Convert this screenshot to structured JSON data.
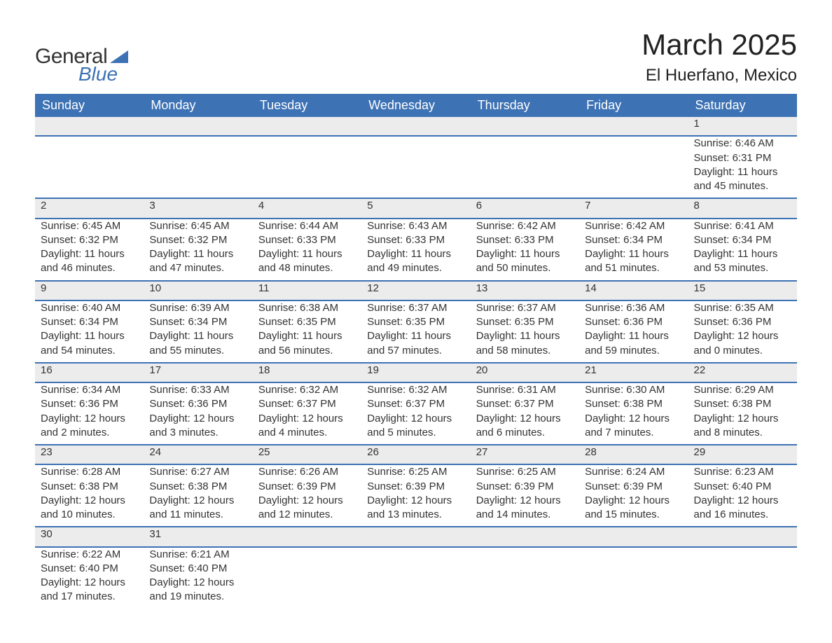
{
  "logo": {
    "word1": "General",
    "word2": "Blue",
    "text_color": "#333333",
    "accent_color": "#3d72b4"
  },
  "title": "March 2025",
  "location": "El Huerfano, Mexico",
  "colors": {
    "header_bg": "#3d72b4",
    "header_text": "#ffffff",
    "daynum_bg": "#ececec",
    "daynum_text": "#555555",
    "body_text": "#333333",
    "row_divider": "#3d72b4",
    "page_bg": "#ffffff"
  },
  "typography": {
    "title_fontsize": 42,
    "location_fontsize": 24,
    "header_fontsize": 18,
    "daynum_fontsize": 17,
    "cell_fontsize": 15
  },
  "columns": [
    "Sunday",
    "Monday",
    "Tuesday",
    "Wednesday",
    "Thursday",
    "Friday",
    "Saturday"
  ],
  "weeks": [
    [
      null,
      null,
      null,
      null,
      null,
      null,
      {
        "day": "1",
        "sunrise": "Sunrise: 6:46 AM",
        "sunset": "Sunset: 6:31 PM",
        "daylight1": "Daylight: 11 hours",
        "daylight2": "and 45 minutes."
      }
    ],
    [
      {
        "day": "2",
        "sunrise": "Sunrise: 6:45 AM",
        "sunset": "Sunset: 6:32 PM",
        "daylight1": "Daylight: 11 hours",
        "daylight2": "and 46 minutes."
      },
      {
        "day": "3",
        "sunrise": "Sunrise: 6:45 AM",
        "sunset": "Sunset: 6:32 PM",
        "daylight1": "Daylight: 11 hours",
        "daylight2": "and 47 minutes."
      },
      {
        "day": "4",
        "sunrise": "Sunrise: 6:44 AM",
        "sunset": "Sunset: 6:33 PM",
        "daylight1": "Daylight: 11 hours",
        "daylight2": "and 48 minutes."
      },
      {
        "day": "5",
        "sunrise": "Sunrise: 6:43 AM",
        "sunset": "Sunset: 6:33 PM",
        "daylight1": "Daylight: 11 hours",
        "daylight2": "and 49 minutes."
      },
      {
        "day": "6",
        "sunrise": "Sunrise: 6:42 AM",
        "sunset": "Sunset: 6:33 PM",
        "daylight1": "Daylight: 11 hours",
        "daylight2": "and 50 minutes."
      },
      {
        "day": "7",
        "sunrise": "Sunrise: 6:42 AM",
        "sunset": "Sunset: 6:34 PM",
        "daylight1": "Daylight: 11 hours",
        "daylight2": "and 51 minutes."
      },
      {
        "day": "8",
        "sunrise": "Sunrise: 6:41 AM",
        "sunset": "Sunset: 6:34 PM",
        "daylight1": "Daylight: 11 hours",
        "daylight2": "and 53 minutes."
      }
    ],
    [
      {
        "day": "9",
        "sunrise": "Sunrise: 6:40 AM",
        "sunset": "Sunset: 6:34 PM",
        "daylight1": "Daylight: 11 hours",
        "daylight2": "and 54 minutes."
      },
      {
        "day": "10",
        "sunrise": "Sunrise: 6:39 AM",
        "sunset": "Sunset: 6:34 PM",
        "daylight1": "Daylight: 11 hours",
        "daylight2": "and 55 minutes."
      },
      {
        "day": "11",
        "sunrise": "Sunrise: 6:38 AM",
        "sunset": "Sunset: 6:35 PM",
        "daylight1": "Daylight: 11 hours",
        "daylight2": "and 56 minutes."
      },
      {
        "day": "12",
        "sunrise": "Sunrise: 6:37 AM",
        "sunset": "Sunset: 6:35 PM",
        "daylight1": "Daylight: 11 hours",
        "daylight2": "and 57 minutes."
      },
      {
        "day": "13",
        "sunrise": "Sunrise: 6:37 AM",
        "sunset": "Sunset: 6:35 PM",
        "daylight1": "Daylight: 11 hours",
        "daylight2": "and 58 minutes."
      },
      {
        "day": "14",
        "sunrise": "Sunrise: 6:36 AM",
        "sunset": "Sunset: 6:36 PM",
        "daylight1": "Daylight: 11 hours",
        "daylight2": "and 59 minutes."
      },
      {
        "day": "15",
        "sunrise": "Sunrise: 6:35 AM",
        "sunset": "Sunset: 6:36 PM",
        "daylight1": "Daylight: 12 hours",
        "daylight2": "and 0 minutes."
      }
    ],
    [
      {
        "day": "16",
        "sunrise": "Sunrise: 6:34 AM",
        "sunset": "Sunset: 6:36 PM",
        "daylight1": "Daylight: 12 hours",
        "daylight2": "and 2 minutes."
      },
      {
        "day": "17",
        "sunrise": "Sunrise: 6:33 AM",
        "sunset": "Sunset: 6:36 PM",
        "daylight1": "Daylight: 12 hours",
        "daylight2": "and 3 minutes."
      },
      {
        "day": "18",
        "sunrise": "Sunrise: 6:32 AM",
        "sunset": "Sunset: 6:37 PM",
        "daylight1": "Daylight: 12 hours",
        "daylight2": "and 4 minutes."
      },
      {
        "day": "19",
        "sunrise": "Sunrise: 6:32 AM",
        "sunset": "Sunset: 6:37 PM",
        "daylight1": "Daylight: 12 hours",
        "daylight2": "and 5 minutes."
      },
      {
        "day": "20",
        "sunrise": "Sunrise: 6:31 AM",
        "sunset": "Sunset: 6:37 PM",
        "daylight1": "Daylight: 12 hours",
        "daylight2": "and 6 minutes."
      },
      {
        "day": "21",
        "sunrise": "Sunrise: 6:30 AM",
        "sunset": "Sunset: 6:38 PM",
        "daylight1": "Daylight: 12 hours",
        "daylight2": "and 7 minutes."
      },
      {
        "day": "22",
        "sunrise": "Sunrise: 6:29 AM",
        "sunset": "Sunset: 6:38 PM",
        "daylight1": "Daylight: 12 hours",
        "daylight2": "and 8 minutes."
      }
    ],
    [
      {
        "day": "23",
        "sunrise": "Sunrise: 6:28 AM",
        "sunset": "Sunset: 6:38 PM",
        "daylight1": "Daylight: 12 hours",
        "daylight2": "and 10 minutes."
      },
      {
        "day": "24",
        "sunrise": "Sunrise: 6:27 AM",
        "sunset": "Sunset: 6:38 PM",
        "daylight1": "Daylight: 12 hours",
        "daylight2": "and 11 minutes."
      },
      {
        "day": "25",
        "sunrise": "Sunrise: 6:26 AM",
        "sunset": "Sunset: 6:39 PM",
        "daylight1": "Daylight: 12 hours",
        "daylight2": "and 12 minutes."
      },
      {
        "day": "26",
        "sunrise": "Sunrise: 6:25 AM",
        "sunset": "Sunset: 6:39 PM",
        "daylight1": "Daylight: 12 hours",
        "daylight2": "and 13 minutes."
      },
      {
        "day": "27",
        "sunrise": "Sunrise: 6:25 AM",
        "sunset": "Sunset: 6:39 PM",
        "daylight1": "Daylight: 12 hours",
        "daylight2": "and 14 minutes."
      },
      {
        "day": "28",
        "sunrise": "Sunrise: 6:24 AM",
        "sunset": "Sunset: 6:39 PM",
        "daylight1": "Daylight: 12 hours",
        "daylight2": "and 15 minutes."
      },
      {
        "day": "29",
        "sunrise": "Sunrise: 6:23 AM",
        "sunset": "Sunset: 6:40 PM",
        "daylight1": "Daylight: 12 hours",
        "daylight2": "and 16 minutes."
      }
    ],
    [
      {
        "day": "30",
        "sunrise": "Sunrise: 6:22 AM",
        "sunset": "Sunset: 6:40 PM",
        "daylight1": "Daylight: 12 hours",
        "daylight2": "and 17 minutes."
      },
      {
        "day": "31",
        "sunrise": "Sunrise: 6:21 AM",
        "sunset": "Sunset: 6:40 PM",
        "daylight1": "Daylight: 12 hours",
        "daylight2": "and 19 minutes."
      },
      null,
      null,
      null,
      null,
      null
    ]
  ]
}
